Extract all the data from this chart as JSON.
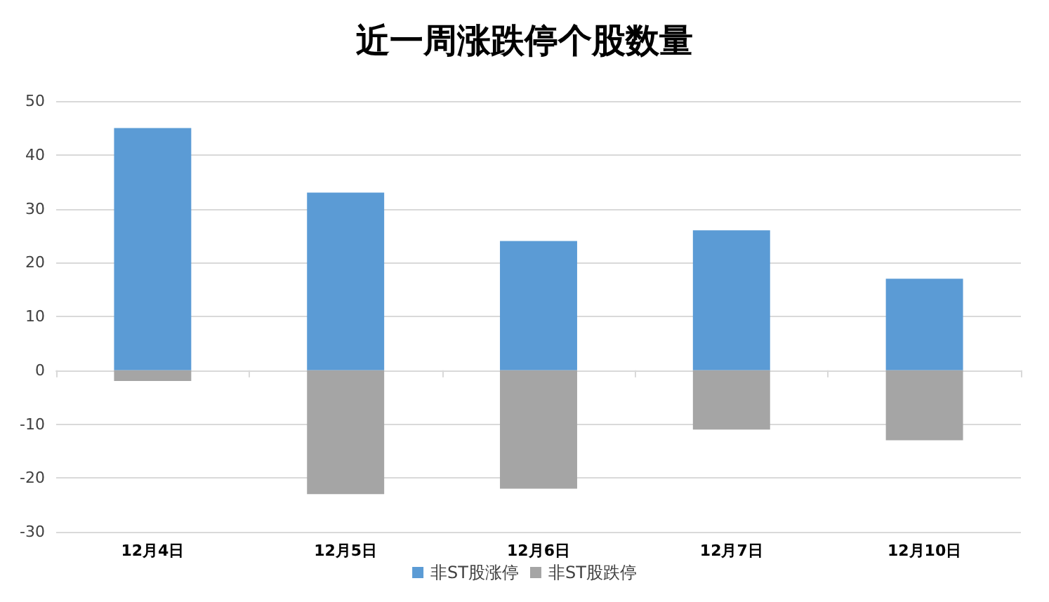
{
  "chart_data": {
    "type": "bar",
    "title": "近一周涨跌停个股数量",
    "categories": [
      "12月4日",
      "12月5日",
      "12月6日",
      "12月7日",
      "12月10日"
    ],
    "series": [
      {
        "name": "非ST股涨停",
        "color": "#5b9bd5",
        "values": [
          45,
          33,
          24,
          26,
          17
        ]
      },
      {
        "name": "非ST股跌停",
        "color": "#a5a5a5",
        "values": [
          -2,
          -23,
          -22,
          -11,
          -13
        ]
      }
    ],
    "ylim": [
      -30,
      50
    ],
    "yticks": [
      -30,
      -20,
      -10,
      0,
      10,
      20,
      30,
      40,
      50
    ],
    "stacked": true,
    "grid": "y",
    "legend": "bottom"
  }
}
